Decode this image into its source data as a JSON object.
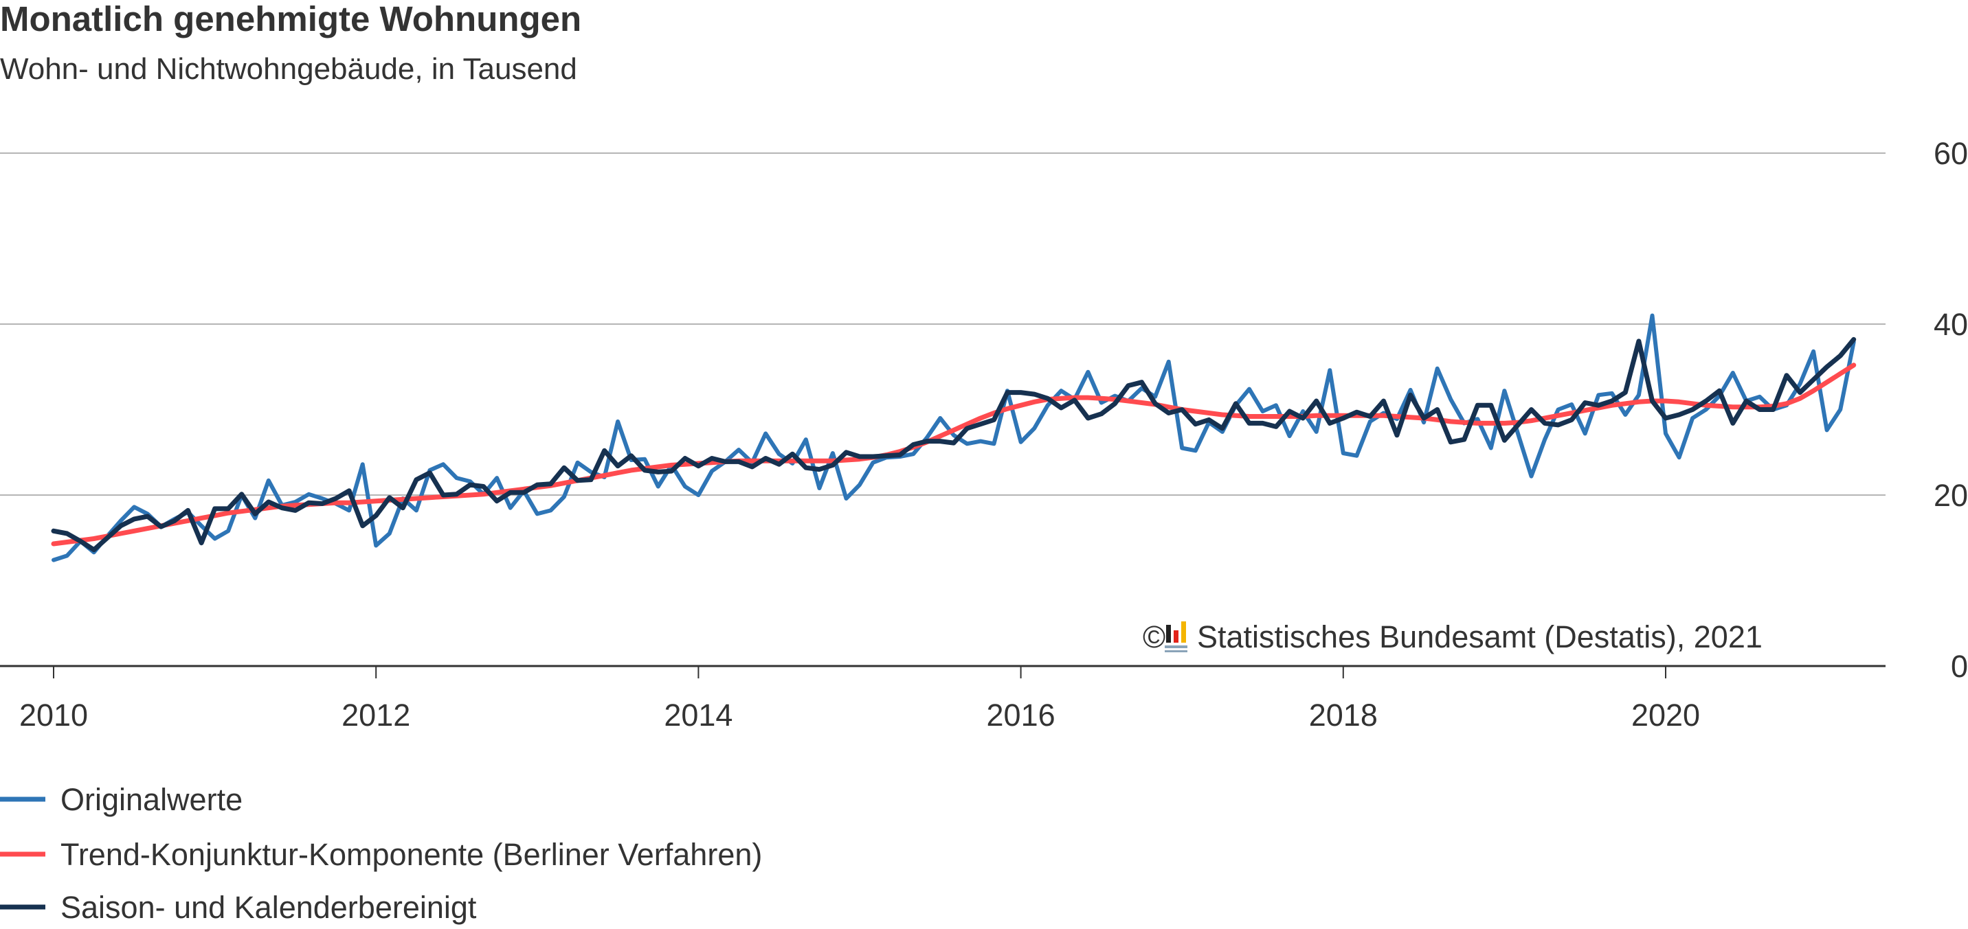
{
  "chart_data": {
    "type": "line",
    "title": "Monatlich genehmigte Wohnungen",
    "subtitle": "Wohn- und Nichtwohngebäude, in Tausend",
    "x_start": "2010-01",
    "x_end": "2021-03",
    "x_frequency": "monthly",
    "x_ticks": [
      "2010",
      "2012",
      "2014",
      "2016",
      "2018",
      "2020"
    ],
    "y_ticks": [
      "0",
      "20",
      "40",
      "60"
    ],
    "ylim": [
      0,
      60
    ],
    "grid": true,
    "legend_placement": "bottom",
    "source": "Statistisches Bundesamt (Destatis), 2021",
    "copyright_symbol": "©",
    "series": [
      {
        "name": "Originalwerte",
        "color": "#2e75b6",
        "values": [
          12.4,
          12.9,
          14.6,
          13.3,
          15.2,
          17,
          18.6,
          17.8,
          16.3,
          17.2,
          18,
          16.4,
          14.9,
          15.8,
          20,
          17.3,
          21.7,
          18.8,
          19.2,
          20.1,
          19.6,
          19,
          18.2,
          23.6,
          14.1,
          15.5,
          19.6,
          18.2,
          22.9,
          23.6,
          22,
          21.6,
          20.1,
          22,
          18.5,
          20.5,
          17.8,
          18.2,
          19.8,
          23.8,
          22.7,
          22.1,
          28.6,
          24.1,
          24.2,
          21,
          23.5,
          21,
          20,
          22.8,
          23.9,
          25.3,
          23.8,
          27.2,
          24.8,
          23.7,
          26.5,
          20.8,
          24.9,
          19.6,
          21.2,
          23.8,
          24.4,
          24.5,
          24.8,
          26.7,
          29,
          27,
          26,
          26.3,
          26,
          32.2,
          26.2,
          27.8,
          30.5,
          32.2,
          31.2,
          34.4,
          30.8,
          31.6,
          31,
          32.5,
          31.5,
          35.6,
          25.5,
          25.2,
          28.5,
          27.4,
          30.5,
          32.4,
          29.8,
          30.5,
          26.9,
          29.8,
          27.4,
          34.6,
          24.9,
          24.6,
          28.6,
          29.6,
          28.9,
          32.3,
          28.5,
          34.8,
          31.2,
          28.4,
          28.9,
          25.5,
          32.2,
          27.2,
          22.2,
          26.5,
          30,
          30.6,
          27.2,
          31.7,
          31.9,
          29.4,
          31.7,
          41,
          27.2,
          24.4,
          29,
          30,
          31.6,
          34.3,
          31,
          31.5,
          30,
          30.5,
          33,
          36.8,
          27.6,
          30,
          37.9
        ]
      },
      {
        "name": "Trend-Konjunktur-Komponente (Berliner Verfahren)",
        "color": "#ff4b4f",
        "values": [
          14.3,
          14.5,
          14.7,
          14.9,
          15.2,
          15.5,
          15.8,
          16.1,
          16.4,
          16.7,
          17,
          17.3,
          17.6,
          17.9,
          18.1,
          18.3,
          18.5,
          18.7,
          18.8,
          18.9,
          19,
          19.1,
          19.1,
          19.2,
          19.3,
          19.4,
          19.5,
          19.6,
          19.7,
          19.8,
          19.9,
          20,
          20.1,
          20.3,
          20.5,
          20.7,
          20.9,
          21.1,
          21.4,
          21.7,
          22,
          22.3,
          22.6,
          22.9,
          23.1,
          23.3,
          23.5,
          23.6,
          23.7,
          23.8,
          23.9,
          24,
          24,
          24,
          24,
          24,
          24,
          24,
          24,
          24.1,
          24.2,
          24.4,
          24.7,
          25.1,
          25.6,
          26.2,
          26.9,
          27.6,
          28.3,
          29,
          29.6,
          30.1,
          30.5,
          30.9,
          31.2,
          31.3,
          31.4,
          31.4,
          31.3,
          31.2,
          31,
          30.8,
          30.6,
          30.3,
          30,
          29.8,
          29.6,
          29.4,
          29.3,
          29.2,
          29.2,
          29.2,
          29.2,
          29.2,
          29.3,
          29.3,
          29.3,
          29.3,
          29.3,
          29.3,
          29.2,
          29.1,
          29,
          28.8,
          28.6,
          28.5,
          28.4,
          28.4,
          28.4,
          28.5,
          28.7,
          29,
          29.3,
          29.6,
          29.9,
          30.2,
          30.5,
          30.7,
          30.9,
          31,
          31,
          30.9,
          30.7,
          30.5,
          30.4,
          30.3,
          30.3,
          30.3,
          30.4,
          30.7,
          31.3,
          32.2,
          33.2,
          34.2,
          35.2
        ]
      },
      {
        "name": "Saison- und Kalenderbereinigt",
        "color": "#163150",
        "values": [
          15.8,
          15.5,
          14.6,
          13.6,
          15,
          16.4,
          17.2,
          17.5,
          16.3,
          17,
          18.2,
          14.4,
          18.4,
          18.4,
          20.1,
          17.8,
          19.2,
          18.5,
          18.2,
          19.1,
          19,
          19.6,
          20.5,
          16.4,
          17.6,
          19.7,
          18.5,
          21.8,
          22.6,
          20,
          20.1,
          21.2,
          21,
          19.3,
          20.3,
          20.3,
          21.2,
          21.3,
          23.2,
          21.7,
          21.8,
          25.2,
          23.4,
          24.6,
          22.9,
          22.7,
          22.8,
          24.3,
          23.4,
          24.3,
          23.9,
          23.9,
          23.3,
          24.3,
          23.6,
          24.8,
          23.2,
          23,
          23.5,
          25,
          24.5,
          24.5,
          24.6,
          24.7,
          25.9,
          26.3,
          26.3,
          26.1,
          27.8,
          28.3,
          28.8,
          32,
          32,
          31.8,
          31.3,
          30.2,
          31.1,
          29,
          29.5,
          30.7,
          32.8,
          33.2,
          30.7,
          29.6,
          30,
          28.3,
          28.8,
          27.8,
          30.7,
          28.4,
          28.4,
          28,
          29.8,
          29,
          31,
          28.4,
          29,
          29.7,
          29.2,
          31,
          27,
          31.7,
          29,
          30,
          26.2,
          26.5,
          30.5,
          30.5,
          26.4,
          28.2,
          30,
          28.4,
          28.2,
          28.8,
          30.8,
          30.5,
          31,
          32,
          38,
          31,
          29,
          29.4,
          30,
          31,
          32.2,
          28.4,
          31,
          30,
          30,
          34,
          32,
          33.5,
          35,
          36.3,
          38.2
        ]
      }
    ]
  }
}
